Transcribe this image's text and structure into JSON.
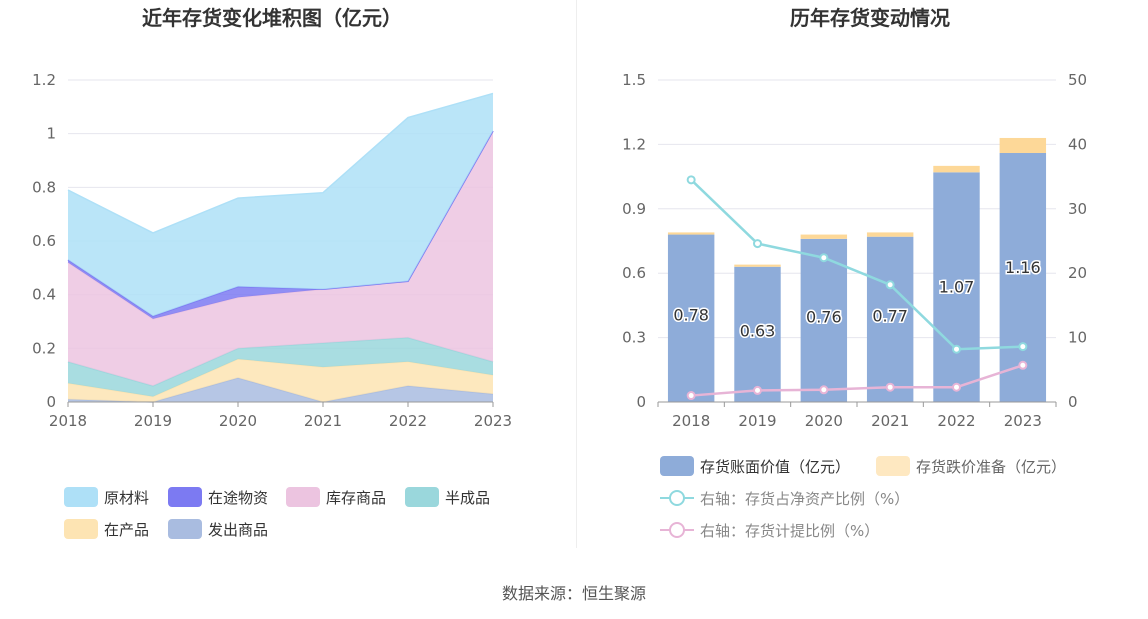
{
  "colors": {
    "raw": "#aee0f7",
    "transit": "#7c7af2",
    "stock": "#ecc4e0",
    "semi": "#9ad7dc",
    "wip": "#fde4b3",
    "shipped": "#a9bce0",
    "bar_book": "#8eacd9",
    "bar_reserve": "#fdd898",
    "line_ratio": "#8fd9df",
    "line_provision": "#e7b4d6"
  },
  "source": "数据来源：恒生聚源",
  "chart_data": [
    {
      "type": "area",
      "stacked": true,
      "title": "近年存货变化堆积图（亿元）",
      "categories": [
        "2018",
        "2019",
        "2020",
        "2021",
        "2022",
        "2023"
      ],
      "ylim": [
        0,
        1.2
      ],
      "yticks": [
        "0",
        "0.2",
        "0.4",
        "0.6",
        "0.8",
        "1",
        "1.2"
      ],
      "series": [
        {
          "name": "发出商品",
          "color_key": "shipped",
          "values": [
            0.01,
            0.0,
            0.09,
            0.0,
            0.06,
            0.03
          ]
        },
        {
          "name": "在产品",
          "color_key": "wip",
          "values": [
            0.06,
            0.02,
            0.07,
            0.13,
            0.09,
            0.07
          ]
        },
        {
          "name": "半成品",
          "color_key": "semi",
          "values": [
            0.08,
            0.04,
            0.04,
            0.09,
            0.09,
            0.05
          ]
        },
        {
          "name": "库存商品",
          "color_key": "stock",
          "values": [
            0.37,
            0.25,
            0.19,
            0.2,
            0.21,
            0.86
          ]
        },
        {
          "name": "在途物资",
          "color_key": "transit",
          "values": [
            0.01,
            0.01,
            0.04,
            0.0,
            0.0,
            0.0
          ]
        },
        {
          "name": "原材料",
          "color_key": "raw",
          "values": [
            0.26,
            0.31,
            0.33,
            0.36,
            0.61,
            0.14
          ]
        }
      ],
      "legend": [
        {
          "name": "原材料",
          "color_key": "raw"
        },
        {
          "name": "在途物资",
          "color_key": "transit"
        },
        {
          "name": "库存商品",
          "color_key": "stock"
        },
        {
          "name": "半成品",
          "color_key": "semi"
        },
        {
          "name": "在产品",
          "color_key": "wip"
        },
        {
          "name": "发出商品",
          "color_key": "shipped"
        }
      ]
    },
    {
      "type": "bar",
      "stacked": true,
      "title": "历年存货变动情况",
      "categories": [
        "2018",
        "2019",
        "2020",
        "2021",
        "2022",
        "2023"
      ],
      "ylim": [
        0,
        1.5
      ],
      "yticks": [
        "0",
        "0.3",
        "0.6",
        "0.9",
        "1.2",
        "1.5"
      ],
      "y2lim": [
        0,
        50
      ],
      "y2ticks": [
        "0",
        "10",
        "20",
        "30",
        "40",
        "50"
      ],
      "series": [
        {
          "name": "存货账面价值（亿元）",
          "color_key": "bar_book",
          "values": [
            0.78,
            0.63,
            0.76,
            0.77,
            1.07,
            1.16
          ],
          "labels": [
            "0.78",
            "0.63",
            "0.76",
            "0.77",
            "1.07",
            "1.16"
          ]
        },
        {
          "name": "存货跌价准备（亿元）",
          "color_key": "bar_reserve",
          "values": [
            0.01,
            0.01,
            0.02,
            0.02,
            0.03,
            0.07
          ]
        }
      ],
      "lines": [
        {
          "name": "右轴：存货占净资产比例（%）",
          "color_key": "line_ratio",
          "values": [
            34.5,
            24.6,
            22.4,
            18.2,
            8.2,
            8.6
          ]
        },
        {
          "name": "右轴：存货计提比例（%）",
          "color_key": "line_provision",
          "values": [
            1.0,
            1.8,
            1.9,
            2.3,
            2.3,
            5.7
          ]
        }
      ]
    }
  ]
}
